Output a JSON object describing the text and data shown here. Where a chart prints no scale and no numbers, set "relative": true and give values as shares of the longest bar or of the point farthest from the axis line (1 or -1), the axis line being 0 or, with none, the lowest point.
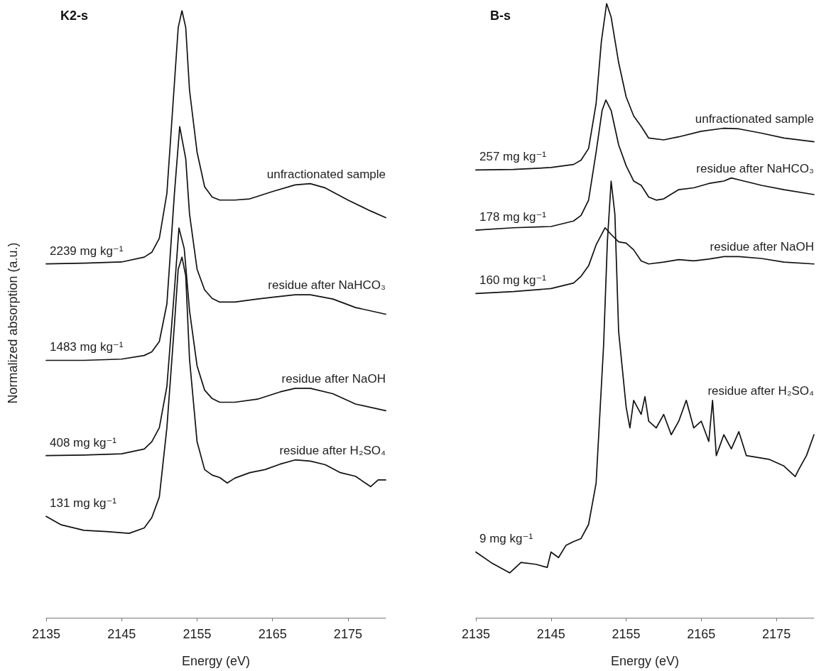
{
  "chart_data": [
    {
      "type": "line",
      "title": "K2-s",
      "xlabel": "Energy (eV)",
      "ylabel": "Normalized absorption (a.u.)",
      "relative": true,
      "xlim": [
        2135,
        2180
      ],
      "xticks": [
        2135,
        2145,
        2155,
        2165,
        2175
      ],
      "series": [
        {
          "name": "unfractionated sample",
          "color": "#111111",
          "x": [
            2135,
            2140,
            2145,
            2148,
            2149,
            2150,
            2151,
            2152,
            2152.5,
            2153,
            2153.5,
            2154,
            2155,
            2156,
            2157,
            2158,
            2160,
            2162,
            2165,
            2168,
            2170,
            2172,
            2175,
            2178,
            2180
          ],
          "values": [
            0.583,
            0.584,
            0.586,
            0.594,
            0.602,
            0.625,
            0.699,
            0.881,
            0.972,
            1,
            0.972,
            0.869,
            0.767,
            0.71,
            0.693,
            0.688,
            0.688,
            0.69,
            0.702,
            0.713,
            0.715,
            0.708,
            0.688,
            0.67,
            0.659
          ]
        },
        {
          "name": "residue after NaHCO₃",
          "color": "#111111",
          "x": [
            2135,
            2140,
            2145,
            2148,
            2149,
            2150,
            2151,
            2152,
            2152.7,
            2153.5,
            2154,
            2155,
            2156,
            2157,
            2158,
            2160,
            2163,
            2165,
            2168,
            2170,
            2173,
            2176,
            2180
          ],
          "values": [
            0.424,
            0.424,
            0.426,
            0.432,
            0.438,
            0.455,
            0.517,
            0.699,
            0.809,
            0.756,
            0.665,
            0.574,
            0.54,
            0.526,
            0.52,
            0.52,
            0.525,
            0.528,
            0.532,
            0.532,
            0.525,
            0.511,
            0.5
          ]
        },
        {
          "name": "residue after NaOH",
          "color": "#111111",
          "x": [
            2135,
            2140,
            2145,
            2148,
            2149,
            2150,
            2151,
            2152,
            2152.6,
            2153.3,
            2154,
            2155,
            2156,
            2157,
            2158,
            2160,
            2163,
            2166,
            2168,
            2170,
            2173,
            2176,
            2180
          ],
          "values": [
            0.267,
            0.268,
            0.27,
            0.278,
            0.29,
            0.313,
            0.381,
            0.54,
            0.642,
            0.608,
            0.506,
            0.415,
            0.375,
            0.361,
            0.355,
            0.355,
            0.36,
            0.372,
            0.378,
            0.378,
            0.369,
            0.352,
            0.341
          ]
        },
        {
          "name": "residue after H₂SO₄",
          "color": "#111111",
          "x": [
            2135,
            2137,
            2140,
            2143,
            2146,
            2148,
            2149,
            2150,
            2151,
            2152,
            2152.5,
            2153,
            2153.5,
            2154,
            2155,
            2156,
            2157,
            2158,
            2159,
            2160,
            2162,
            2164,
            2166,
            2168,
            2170,
            2172,
            2174,
            2176,
            2178,
            2179,
            2180
          ],
          "values": [
            0.167,
            0.153,
            0.144,
            0.142,
            0.139,
            0.148,
            0.165,
            0.199,
            0.313,
            0.483,
            0.574,
            0.594,
            0.563,
            0.426,
            0.29,
            0.244,
            0.235,
            0.231,
            0.222,
            0.23,
            0.239,
            0.244,
            0.253,
            0.26,
            0.258,
            0.252,
            0.239,
            0.233,
            0.216,
            0.227,
            0.227
          ]
        }
      ],
      "annotations": [
        "2239 mg kg⁻¹",
        "1483 mg kg⁻¹",
        "408 mg kg⁻¹",
        "131 mg kg⁻¹"
      ]
    },
    {
      "type": "line",
      "title": "B-s",
      "xlabel": "Energy (eV)",
      "relative": true,
      "xlim": [
        2135,
        2180
      ],
      "xticks": [
        2135,
        2145,
        2155,
        2165,
        2175
      ],
      "series": [
        {
          "name": "unfractionated sample",
          "color": "#111111",
          "x": [
            2135,
            2140,
            2145,
            2148,
            2149,
            2150,
            2151,
            2151.7,
            2152.4,
            2153,
            2154,
            2155,
            2156,
            2157,
            2158,
            2160,
            2162,
            2165,
            2168,
            2170,
            2173,
            2176,
            2180
          ],
          "values": [
            0.729,
            0.73,
            0.733,
            0.738,
            0.745,
            0.764,
            0.837,
            0.938,
            1,
            0.978,
            0.904,
            0.848,
            0.817,
            0.8,
            0.781,
            0.778,
            0.783,
            0.792,
            0.797,
            0.796,
            0.789,
            0.781,
            0.775
          ]
        },
        {
          "name": "residue after NaHCO₃",
          "color": "#111111",
          "x": [
            2135,
            2140,
            2145,
            2148,
            2149,
            2150,
            2151,
            2151.8,
            2152.3,
            2153,
            2154,
            2155,
            2156,
            2157,
            2158,
            2159,
            2160,
            2162,
            2164,
            2166,
            2168,
            2169,
            2170,
            2173,
            2176,
            2180
          ],
          "values": [
            0.631,
            0.635,
            0.637,
            0.646,
            0.655,
            0.68,
            0.758,
            0.826,
            0.843,
            0.826,
            0.77,
            0.736,
            0.711,
            0.704,
            0.685,
            0.68,
            0.682,
            0.697,
            0.7,
            0.707,
            0.711,
            0.716,
            0.713,
            0.704,
            0.697,
            0.689
          ]
        },
        {
          "name": "residue after NaOH",
          "color": "#111111",
          "x": [
            2135,
            2140,
            2145,
            2148,
            2149,
            2150,
            2151,
            2152.2,
            2153,
            2154,
            2155,
            2156,
            2157,
            2158,
            2160,
            2162,
            2164,
            2166,
            2168,
            2170,
            2173,
            2176,
            2180
          ],
          "values": [
            0.528,
            0.531,
            0.536,
            0.545,
            0.556,
            0.573,
            0.607,
            0.635,
            0.624,
            0.612,
            0.61,
            0.599,
            0.581,
            0.576,
            0.579,
            0.583,
            0.581,
            0.584,
            0.588,
            0.588,
            0.585,
            0.579,
            0.576
          ]
        },
        {
          "name": "residue after H₂SO₄",
          "color": "#111111",
          "x": [
            2135,
            2137,
            2139.5,
            2141,
            2143,
            2144.5,
            2145,
            2146,
            2147,
            2148,
            2149,
            2150,
            2151,
            2152,
            2152.5,
            2153,
            2153.5,
            2154,
            2155,
            2155.5,
            2156,
            2157,
            2157.5,
            2158,
            2159,
            2160,
            2161,
            2162,
            2163,
            2164,
            2165,
            2166,
            2166.5,
            2167,
            2168,
            2169,
            2170,
            2171,
            2172,
            2174,
            2176,
            2177.5,
            2178,
            2179,
            2180
          ],
          "values": [
            0.107,
            0.09,
            0.073,
            0.09,
            0.087,
            0.082,
            0.107,
            0.098,
            0.118,
            0.124,
            0.129,
            0.152,
            0.219,
            0.444,
            0.612,
            0.711,
            0.657,
            0.466,
            0.343,
            0.309,
            0.354,
            0.331,
            0.36,
            0.32,
            0.309,
            0.331,
            0.298,
            0.32,
            0.354,
            0.309,
            0.32,
            0.287,
            0.354,
            0.264,
            0.298,
            0.275,
            0.303,
            0.264,
            0.262,
            0.258,
            0.247,
            0.23,
            0.242,
            0.264,
            0.298
          ]
        }
      ],
      "annotations": [
        "257 mg kg⁻¹",
        "178 mg kg⁻¹",
        "160 mg kg⁻¹",
        "9 mg kg⁻¹"
      ]
    }
  ]
}
